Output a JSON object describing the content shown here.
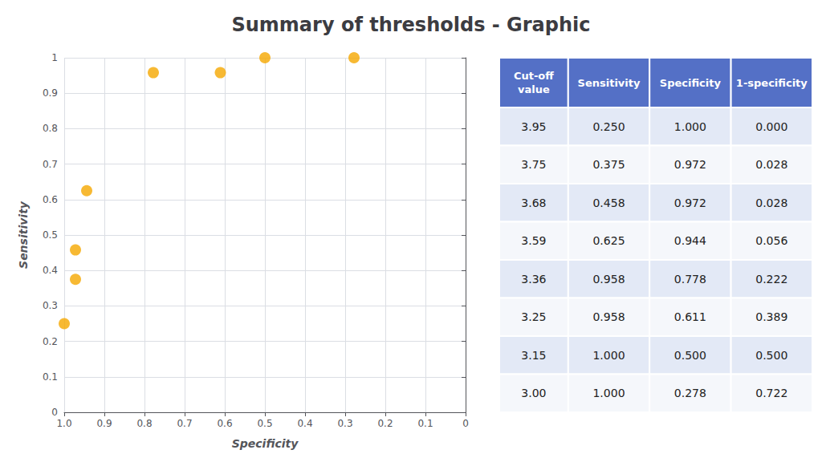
{
  "chart_data": [
    {
      "type": "scatter",
      "title": "Summary of thresholds - Graphic",
      "xlabel": "Specificity",
      "ylabel": "Sensitivity",
      "x": [
        1.0,
        0.972,
        0.972,
        0.944,
        0.778,
        0.611,
        0.5,
        0.278
      ],
      "values": [
        0.25,
        0.375,
        0.458,
        0.625,
        0.958,
        0.958,
        1.0,
        1.0
      ],
      "color": "#f5a800",
      "xlim": [
        1.0,
        0.0
      ],
      "ylim": [
        0,
        1.0
      ],
      "xticks": [
        {
          "value": 1.0,
          "label": "1.0"
        },
        0.9,
        0.8,
        0.7,
        0.6,
        0.5,
        0.4,
        0.3,
        0.2,
        0.1,
        0
      ],
      "yticks": [
        0,
        0.1,
        0.2,
        0.3,
        0.4,
        0.5,
        0.6,
        0.7,
        0.8,
        0.9,
        1
      ],
      "grid": true
    },
    {
      "type": "table",
      "columns": [
        "Cut-off\nvalue",
        "Sensitivity",
        "Specificity",
        "1-specificity"
      ],
      "rows": [
        [
          "3.95",
          "0.250",
          "1.000",
          "0.000"
        ],
        [
          "3.75",
          "0.375",
          "0.972",
          "0.028"
        ],
        [
          "3.68",
          "0.458",
          "0.972",
          "0.028"
        ],
        [
          "3.59",
          "0.625",
          "0.944",
          "0.056"
        ],
        [
          "3.36",
          "0.958",
          "0.778",
          "0.222"
        ],
        [
          "3.25",
          "0.958",
          "0.611",
          "0.389"
        ],
        [
          "3.15",
          "1.000",
          "0.500",
          "0.500"
        ],
        [
          "3.00",
          "1.000",
          "0.278",
          "0.722"
        ]
      ]
    }
  ]
}
